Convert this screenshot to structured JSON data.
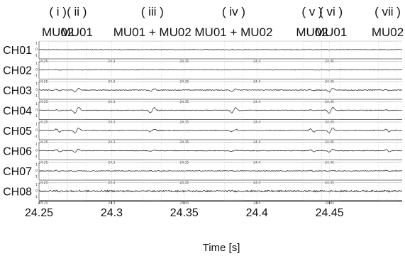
{
  "chart_data": {
    "type": "line",
    "title": "",
    "xlabel": "Time [s]",
    "ylabel": "",
    "xlim": [
      24.25,
      24.5
    ],
    "ylim": [
      -1,
      1
    ],
    "mini_ylim_ticks": [
      "1",
      "0",
      "-1"
    ],
    "x_ticks": [
      24.25,
      24.3,
      24.35,
      24.4,
      24.45
    ],
    "x_tick_labels": [
      "24.25",
      "24.3",
      "24.35",
      "24.4",
      "24.45"
    ],
    "channels": [
      "CH01",
      "CH02",
      "CH03",
      "CH04",
      "CH05",
      "CH06",
      "CH07",
      "CH08"
    ],
    "events": [
      {
        "numeral": "( i )",
        "unit": "MU02",
        "time": 24.263
      },
      {
        "numeral": "( ii )",
        "unit": "MU01",
        "time": 24.276
      },
      {
        "numeral": "( iii )",
        "unit": "MU01 + MU02",
        "time": 24.328
      },
      {
        "numeral": "( iv )",
        "unit": "MU01 + MU02",
        "time": 24.384
      },
      {
        "numeral": "( v )",
        "unit": "MU02",
        "time": 24.438
      },
      {
        "numeral": "( vi )",
        "unit": "MU01",
        "time": 24.451
      },
      {
        "numeral": "( vii )",
        "unit": "MU02",
        "time": 24.49
      }
    ],
    "amplitudes": {
      "MU01": [
        0.02,
        0.03,
        0.35,
        0.6,
        0.5,
        0.3,
        0.05,
        0.04
      ],
      "MU02": [
        0.05,
        0.04,
        0.12,
        0.1,
        0.3,
        0.22,
        0.1,
        0.08
      ]
    },
    "noise_level": [
      0.05,
      0.04,
      0.06,
      0.05,
      0.06,
      0.05,
      0.05,
      0.12
    ],
    "line_color": "#222222",
    "grid": true
  }
}
